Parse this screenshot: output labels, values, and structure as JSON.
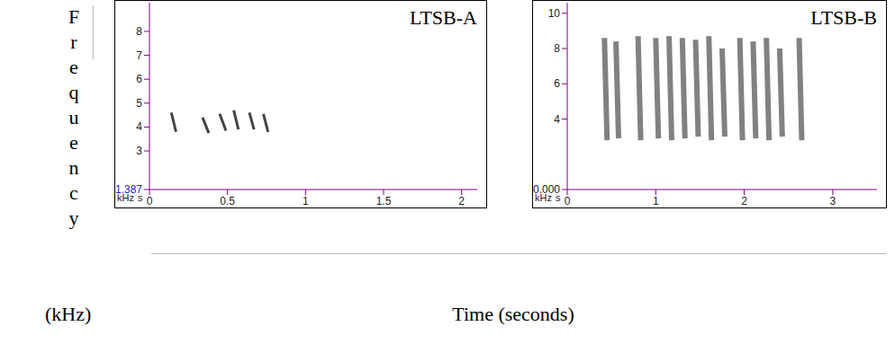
{
  "y_label": "Frequency",
  "y_label_unit": "(kHz)",
  "x_label": "Time (seconds)",
  "chart_data": [
    {
      "type": "line",
      "title": "LTSB-A",
      "x_unit": "s",
      "y_unit": "kHz",
      "color": "#444444",
      "xlim": [
        0,
        2.1
      ],
      "xticks": [
        0,
        0.5,
        1,
        1.5,
        2
      ],
      "ylim": [
        1.387,
        9.2
      ],
      "yticks": [
        1.387,
        3,
        4,
        5,
        6,
        7,
        8
      ],
      "segments": [
        {
          "x": [
            0.14,
            0.17
          ],
          "y": [
            4.6,
            3.8
          ]
        },
        {
          "x": [
            0.34,
            0.38
          ],
          "y": [
            4.4,
            3.75
          ]
        },
        {
          "x": [
            0.45,
            0.49
          ],
          "y": [
            4.55,
            3.85
          ]
        },
        {
          "x": [
            0.54,
            0.57
          ],
          "y": [
            4.7,
            3.9
          ]
        },
        {
          "x": [
            0.64,
            0.67
          ],
          "y": [
            4.6,
            3.9
          ]
        },
        {
          "x": [
            0.73,
            0.76
          ],
          "y": [
            4.55,
            3.8
          ]
        }
      ]
    },
    {
      "type": "line",
      "title": "LTSB-B",
      "x_unit": "s",
      "y_unit": "kHz",
      "color": "#6b6b6b",
      "xlim": [
        0,
        3.5
      ],
      "xticks": [
        0,
        1,
        2,
        3
      ],
      "ylim": [
        0,
        10.6
      ],
      "yticks": [
        {
          "value": 0,
          "label": "0.000"
        },
        4,
        6,
        8,
        10
      ],
      "segments": [
        {
          "x": [
            0.42,
            0.45
          ],
          "y": [
            8.6,
            2.8
          ]
        },
        {
          "x": [
            0.55,
            0.58
          ],
          "y": [
            8.4,
            2.9
          ]
        },
        {
          "x": [
            0.8,
            0.83
          ],
          "y": [
            8.7,
            2.8
          ]
        },
        {
          "x": [
            1.0,
            1.03
          ],
          "y": [
            8.6,
            2.9
          ]
        },
        {
          "x": [
            1.15,
            1.18
          ],
          "y": [
            8.7,
            2.8
          ]
        },
        {
          "x": [
            1.3,
            1.33
          ],
          "y": [
            8.6,
            2.9
          ]
        },
        {
          "x": [
            1.45,
            1.48
          ],
          "y": [
            8.5,
            3.0
          ]
        },
        {
          "x": [
            1.6,
            1.63
          ],
          "y": [
            8.7,
            2.8
          ]
        },
        {
          "x": [
            1.75,
            1.78
          ],
          "y": [
            8.0,
            3.0
          ]
        },
        {
          "x": [
            1.95,
            1.98
          ],
          "y": [
            8.6,
            2.8
          ]
        },
        {
          "x": [
            2.1,
            2.13
          ],
          "y": [
            8.4,
            2.9
          ]
        },
        {
          "x": [
            2.25,
            2.28
          ],
          "y": [
            8.6,
            2.8
          ]
        },
        {
          "x": [
            2.4,
            2.43
          ],
          "y": [
            8.0,
            3.0
          ]
        },
        {
          "x": [
            2.62,
            2.65
          ],
          "y": [
            8.6,
            2.8
          ]
        }
      ]
    }
  ]
}
